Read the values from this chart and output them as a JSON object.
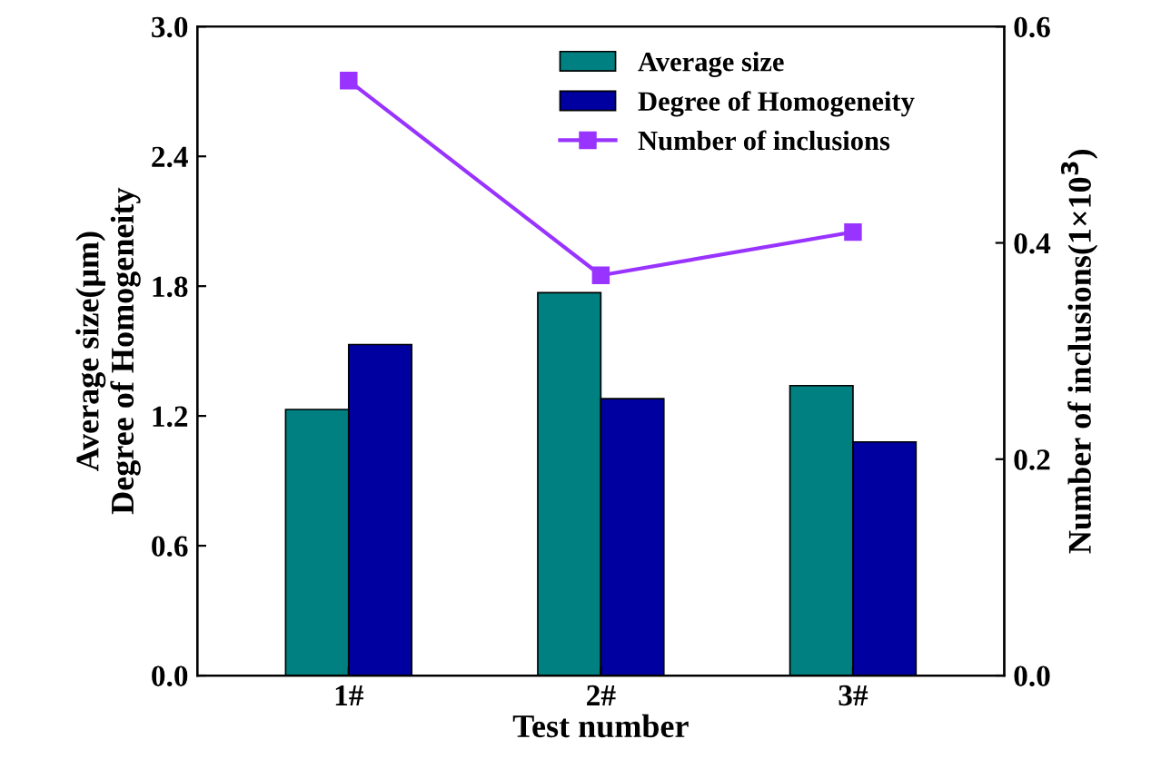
{
  "chart_data": {
    "type": "bar",
    "categories": [
      "1#",
      "2#",
      "3#"
    ],
    "xlabel": "Test number",
    "ylabel": "Average size(μm)\nDegree of Homogeneity",
    "y2label": "Number of inclusions(1×10$^{3}$)",
    "series": [
      {
        "name": "Average size",
        "color": "#008080",
        "values": [
          1.23,
          1.77,
          1.34
        ]
      },
      {
        "name": "Degree of Homogeneity",
        "color": "#0000a0",
        "values": [
          1.53,
          1.28,
          1.08
        ]
      },
      {
        "name": "Number of inclusions",
        "type": "line",
        "axis": "y2",
        "color": "#9933ff",
        "marker": "square",
        "values": [
          0.55,
          0.37,
          0.41
        ]
      }
    ],
    "ylim": [
      0,
      3.0
    ],
    "yticks": [
      {
        "value": 0,
        "label": "0.0"
      },
      0.6,
      1.2,
      1.8,
      2.4,
      {
        "value": 3,
        "label": "3.0"
      }
    ],
    "y2lim": [
      0,
      0.6
    ],
    "y2ticks": [
      {
        "value": 0,
        "label": "0.0"
      },
      0.2,
      0.4,
      0.6
    ],
    "legend": "top right",
    "grid": false
  }
}
